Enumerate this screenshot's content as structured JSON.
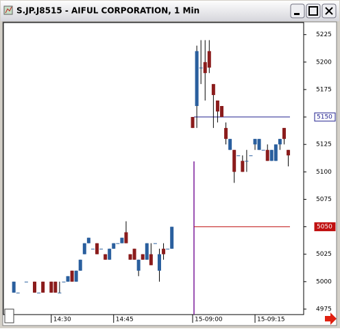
{
  "chart_data": {
    "type": "candlestick",
    "title": "S.JP.J8515 - AIFUL CORPORATION, 1 Min",
    "x": [
      0,
      1,
      3,
      5,
      6,
      7,
      9,
      10,
      11,
      12,
      13,
      14,
      15,
      16,
      17,
      18,
      19,
      20,
      21,
      22,
      23,
      24,
      25,
      26,
      27,
      28,
      29,
      30,
      31,
      32,
      33,
      34,
      35,
      36,
      37,
      38,
      43,
      44,
      45,
      46,
      47,
      48,
      49,
      50,
      51,
      52,
      53,
      54,
      55,
      56,
      57,
      58,
      59,
      60,
      61,
      62,
      63,
      64,
      65,
      66
    ],
    "open": [
      4990,
      4990,
      5000,
      5000,
      4990,
      5000,
      5000,
      5000,
      4990,
      5000,
      5000,
      5010,
      5000,
      5010,
      5025,
      5035,
      5030,
      5035,
      5030,
      5025,
      5020,
      5030,
      5035,
      5035,
      5045,
      5025,
      5030,
      5010,
      5025,
      5020,
      5025,
      5035,
      5010,
      5030,
      5030,
      5030,
      5150,
      5160,
      5195,
      5200,
      5210,
      5180,
      5165,
      5160,
      5140,
      5120,
      5120,
      5115,
      5110,
      5110,
      5115,
      5125,
      5120,
      5120,
      5120,
      5110,
      5110,
      5125,
      5140,
      5120
    ],
    "high": [
      5000,
      4990,
      5000,
      5000,
      4990,
      5000,
      5000,
      5000,
      5000,
      5000,
      5005,
      5010,
      5010,
      5020,
      5035,
      5040,
      5030,
      5035,
      5030,
      5025,
      5030,
      5035,
      5035,
      5040,
      5055,
      5025,
      5030,
      5020,
      5025,
      5035,
      5035,
      5035,
      5030,
      5035,
      5030,
      5050,
      5150,
      5215,
      5220,
      5220,
      5220,
      5180,
      5165,
      5160,
      5145,
      5130,
      5120,
      5115,
      5115,
      5120,
      5115,
      5130,
      5130,
      5120,
      5125,
      5120,
      5125,
      5130,
      5140,
      5120
    ],
    "low": [
      4990,
      4990,
      5000,
      4990,
      4990,
      4990,
      4990,
      4990,
      4990,
      5000,
      5000,
      5000,
      5000,
      5010,
      5025,
      5035,
      5030,
      5025,
      5030,
      5020,
      5020,
      5030,
      5035,
      5035,
      5035,
      5020,
      5020,
      5005,
      5020,
      5020,
      5015,
      5035,
      5000,
      5020,
      5030,
      5030,
      5140,
      5140,
      5180,
      5165,
      5190,
      5140,
      5145,
      5150,
      5125,
      5120,
      5090,
      5115,
      5100,
      5100,
      5115,
      5120,
      5120,
      5120,
      5110,
      5110,
      5110,
      5120,
      5125,
      5105
    ],
    "close": [
      5000,
      4990,
      5000,
      4990,
      4990,
      4990,
      4990,
      4990,
      4990,
      5000,
      5005,
      5000,
      5010,
      5020,
      5035,
      5040,
      5030,
      5025,
      5030,
      5020,
      5030,
      5035,
      5035,
      5040,
      5035,
      5020,
      5020,
      5020,
      5020,
      5035,
      5015,
      5035,
      5025,
      5025,
      5030,
      5050,
      5140,
      5210,
      5195,
      5190,
      5195,
      5170,
      5155,
      5150,
      5130,
      5130,
      5100,
      5115,
      5100,
      5110,
      5115,
      5130,
      5130,
      5120,
      5110,
      5120,
      5125,
      5130,
      5130,
      5115
    ],
    "up_color": "#2a5f9e",
    "down_color": "#8b1c1c",
    "xlim": [
      -2.5,
      69.7
    ],
    "xticks": [
      {
        "value": 9,
        "label": "14:30"
      },
      {
        "value": 24,
        "label": "14:45"
      },
      {
        "value": 43,
        "label": "15-09:00"
      },
      {
        "value": 58,
        "label": "15-09:15"
      }
    ],
    "ylim": [
      4970,
      5236
    ],
    "yticks": [
      4975,
      5000,
      5025,
      5050,
      5075,
      5100,
      5125,
      5150,
      5175,
      5200,
      5225
    ],
    "hlines": [
      {
        "value": 5150,
        "color": "#1c1c8c"
      },
      {
        "value": 5050,
        "color": "#c01010"
      }
    ]
  }
}
